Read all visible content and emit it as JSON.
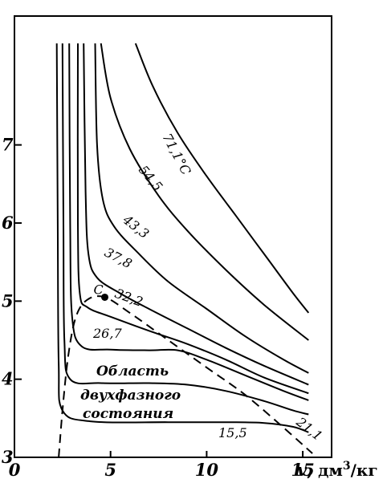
{
  "chart_data": {
    "type": "line",
    "title": "",
    "xlabel": "v, дм³/кг",
    "xlabel_parts": {
      "var": "v",
      "unit_main": ", дм",
      "unit_sup": "3",
      "unit_tail": "/кг"
    },
    "ylabel": "",
    "xlim": [
      0,
      16.5
    ],
    "ylim": [
      3,
      8.65
    ],
    "x_ticks": [
      "0",
      "5",
      "10",
      "15"
    ],
    "y_ticks": [
      "3",
      "4",
      "5",
      "6",
      "7"
    ],
    "grid": false,
    "legend": "none",
    "series": [
      {
        "name": "15,5",
        "points": [
          [
            2.2,
            8.3
          ],
          [
            2.25,
            6.0
          ],
          [
            2.3,
            4.2
          ],
          [
            2.5,
            3.6
          ],
          [
            4,
            3.46
          ],
          [
            8,
            3.45
          ],
          [
            11,
            3.45
          ],
          [
            13,
            3.44
          ],
          [
            14.5,
            3.39
          ],
          [
            15.3,
            3.32
          ]
        ]
      },
      {
        "name": "21,1",
        "points": [
          [
            2.5,
            8.3
          ],
          [
            2.55,
            6.0
          ],
          [
            2.6,
            4.5
          ],
          [
            2.9,
            4.0
          ],
          [
            4.5,
            3.95
          ],
          [
            7,
            3.95
          ],
          [
            9,
            3.93
          ],
          [
            11,
            3.85
          ],
          [
            13,
            3.72
          ],
          [
            14.5,
            3.6
          ],
          [
            15.3,
            3.55
          ]
        ]
      },
      {
        "name": "26,7",
        "points": [
          [
            2.85,
            8.3
          ],
          [
            2.9,
            6.0
          ],
          [
            3.0,
            4.8
          ],
          [
            3.5,
            4.42
          ],
          [
            5,
            4.38
          ],
          [
            7,
            4.37
          ],
          [
            8.5,
            4.37
          ],
          [
            10,
            4.25
          ],
          [
            12,
            4.05
          ],
          [
            14,
            3.85
          ],
          [
            15.3,
            3.73
          ]
        ]
      },
      {
        "name": "32,2",
        "points": [
          [
            3.3,
            8.3
          ],
          [
            3.3,
            6.0
          ],
          [
            3.4,
            5.1
          ],
          [
            3.8,
            4.92
          ],
          [
            5,
            4.8
          ],
          [
            7,
            4.62
          ],
          [
            9,
            4.45
          ],
          [
            11,
            4.25
          ],
          [
            13,
            4.02
          ],
          [
            15.3,
            3.82
          ]
        ]
      },
      {
        "name": "37,8",
        "points": [
          [
            3.6,
            8.3
          ],
          [
            3.7,
            6.4
          ],
          [
            3.85,
            5.6
          ],
          [
            4.3,
            5.3
          ],
          [
            5.5,
            5.1
          ],
          [
            7,
            4.9
          ],
          [
            9,
            4.65
          ],
          [
            11,
            4.4
          ],
          [
            13,
            4.17
          ],
          [
            15.3,
            3.93
          ]
        ]
      },
      {
        "name": "43,3",
        "points": [
          [
            4.2,
            8.3
          ],
          [
            4.3,
            7.0
          ],
          [
            4.6,
            6.3
          ],
          [
            5.2,
            5.95
          ],
          [
            6.5,
            5.6
          ],
          [
            8,
            5.25
          ],
          [
            10,
            4.9
          ],
          [
            12,
            4.55
          ],
          [
            14,
            4.25
          ],
          [
            15.3,
            4.08
          ]
        ]
      },
      {
        "name": "54,5",
        "points": [
          [
            4.5,
            8.3
          ],
          [
            5.0,
            7.6
          ],
          [
            6,
            6.95
          ],
          [
            7.5,
            6.35
          ],
          [
            9,
            5.9
          ],
          [
            11,
            5.4
          ],
          [
            13,
            4.95
          ],
          [
            15.3,
            4.5
          ]
        ]
      },
      {
        "name": "71,1°C",
        "points": [
          [
            6.3,
            8.3
          ],
          [
            7.2,
            7.75
          ],
          [
            8.5,
            7.15
          ],
          [
            10,
            6.6
          ],
          [
            11.5,
            6.1
          ],
          [
            13,
            5.6
          ],
          [
            14.5,
            5.1
          ],
          [
            15.3,
            4.85
          ]
        ]
      }
    ],
    "saturation_dome": {
      "style": "dashed",
      "points": [
        [
          2.3,
          3.0
        ],
        [
          2.5,
          3.6
        ],
        [
          2.8,
          4.3
        ],
        [
          3.2,
          4.8
        ],
        [
          3.8,
          5.02
        ],
        [
          4.7,
          5.05
        ],
        [
          6,
          4.85
        ],
        [
          8,
          4.5
        ],
        [
          10,
          4.15
        ],
        [
          12,
          3.8
        ],
        [
          14,
          3.38
        ],
        [
          15.5,
          3.05
        ]
      ]
    },
    "critical_point": {
      "label": "C",
      "x": 4.7,
      "y": 5.05
    },
    "annotations": [
      "Область",
      "двухфазного",
      "состояния"
    ]
  }
}
